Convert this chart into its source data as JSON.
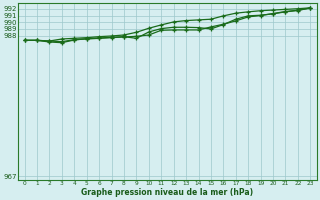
{
  "title": "Graphe pression niveau de la mer (hPa)",
  "background_color": "#d6eef0",
  "grid_color": "#9dc8cc",
  "line_color": "#1a6b1a",
  "xlim": [
    -0.5,
    23.5
  ],
  "ylim": [
    966.5,
    992.8
  ],
  "yticks": [
    967,
    988,
    989,
    990,
    991,
    992
  ],
  "xticks": [
    0,
    1,
    2,
    3,
    4,
    5,
    6,
    7,
    8,
    9,
    10,
    11,
    12,
    13,
    14,
    15,
    16,
    17,
    18,
    19,
    20,
    21,
    22,
    23
  ],
  "line1": [
    987.3,
    987.3,
    987.2,
    987.1,
    987.4,
    987.5,
    987.6,
    987.7,
    987.8,
    987.9,
    988.1,
    988.8,
    988.85,
    988.85,
    988.85,
    989.3,
    989.7,
    990.2,
    990.8,
    991.0,
    991.3,
    991.6,
    991.8,
    992.1
  ],
  "line2": [
    987.3,
    987.3,
    987.2,
    987.5,
    987.6,
    987.7,
    987.85,
    987.95,
    988.1,
    988.5,
    989.1,
    989.6,
    990.05,
    990.25,
    990.35,
    990.45,
    990.95,
    991.35,
    991.55,
    991.72,
    991.82,
    991.92,
    992.02,
    992.15
  ],
  "line3": [
    987.3,
    987.3,
    987.05,
    986.95,
    987.35,
    987.55,
    987.65,
    987.75,
    987.85,
    987.6,
    988.55,
    989.05,
    989.25,
    989.25,
    989.2,
    989.0,
    989.65,
    990.45,
    990.95,
    991.05,
    991.25,
    991.55,
    991.75,
    992.15
  ]
}
